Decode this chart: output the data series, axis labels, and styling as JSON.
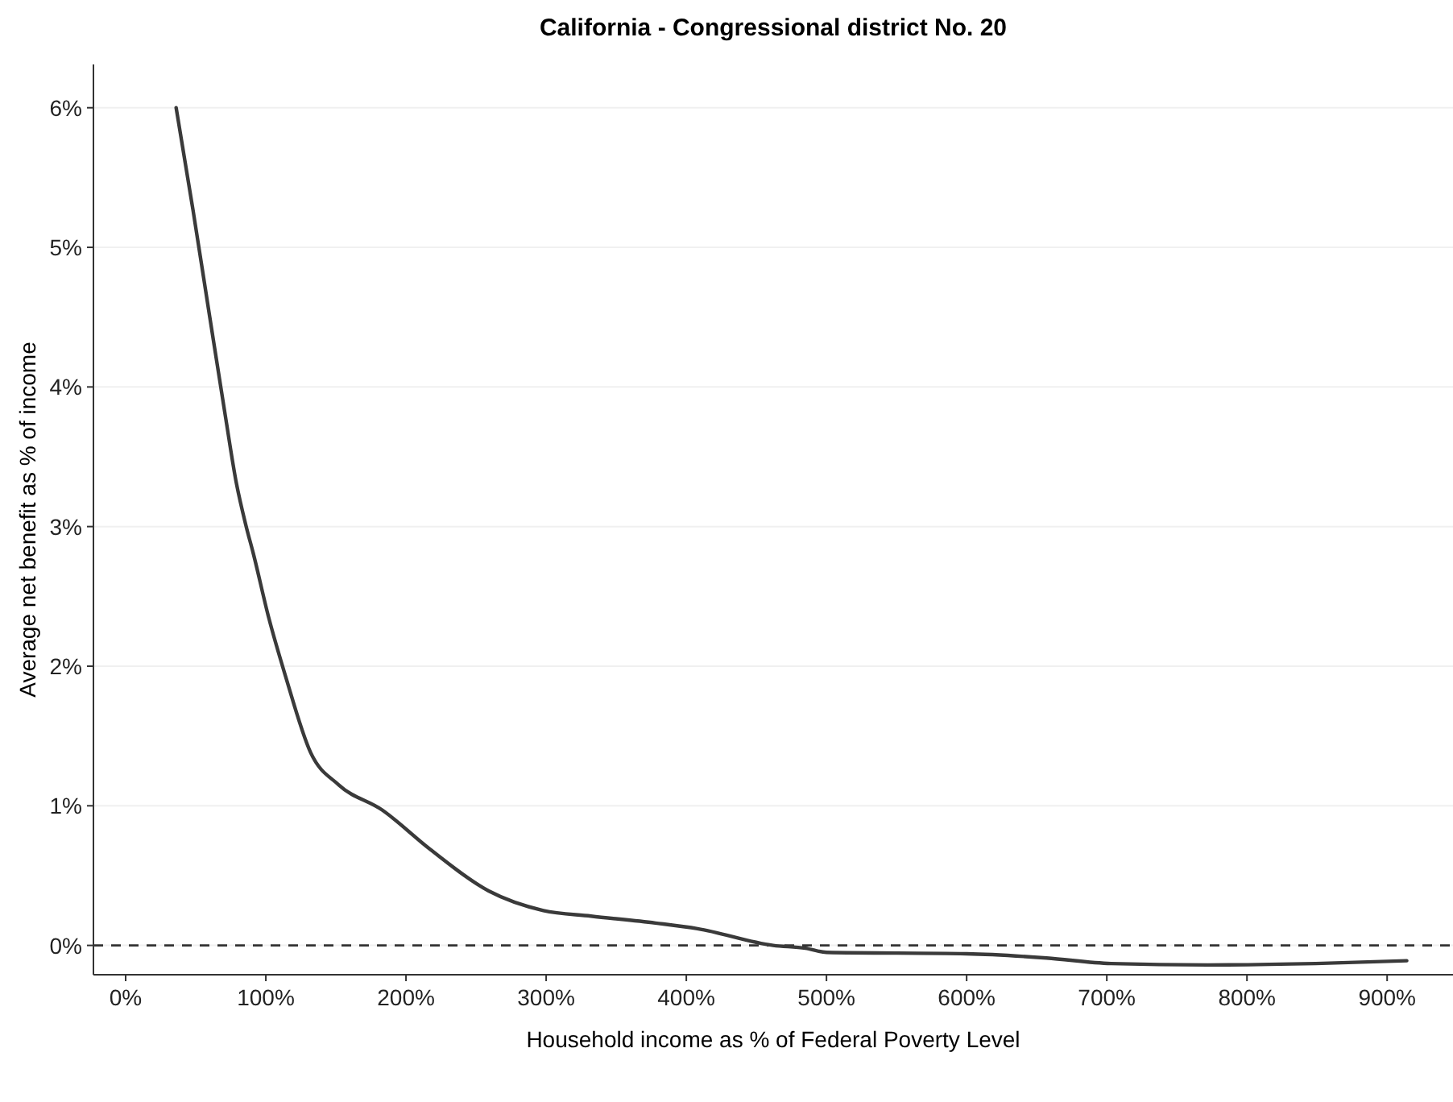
{
  "chart_data": {
    "type": "line",
    "title": "California - Congressional district No. 20",
    "xlabel": "Household income as % of Federal Poverty Level",
    "ylabel": "Average net benefit as % of income",
    "series": [
      {
        "color": "#3a3a3a",
        "x": [
          36,
          48,
          60,
          71,
          79,
          86,
          91,
          102,
          114,
          132,
          152,
          183,
          217,
          259,
          298,
          332,
          378,
          408,
          462,
          485,
          500,
          600,
          657,
          703,
          772,
          849,
          914
        ],
        "values": [
          6.0,
          5.27,
          4.5,
          3.8,
          3.31,
          3.0,
          2.81,
          2.35,
          1.93,
          1.38,
          1.15,
          0.97,
          0.69,
          0.39,
          0.25,
          0.21,
          0.16,
          0.12,
          0.0,
          -0.02,
          -0.05,
          -0.06,
          -0.09,
          -0.13,
          -0.14,
          -0.13,
          -0.11
        ]
      }
    ],
    "xlim": [
      -23,
      947
    ],
    "ylim": [
      -0.21,
      6.31
    ],
    "xticks": [
      {
        "value": 0,
        "label": "0%"
      },
      {
        "value": 100,
        "label": "100%"
      },
      {
        "value": 200,
        "label": "200%"
      },
      {
        "value": 300,
        "label": "300%"
      },
      {
        "value": 400,
        "label": "400%"
      },
      {
        "value": 500,
        "label": "500%"
      },
      {
        "value": 600,
        "label": "600%"
      },
      {
        "value": 700,
        "label": "700%"
      },
      {
        "value": 800,
        "label": "800%"
      },
      {
        "value": 900,
        "label": "900%"
      }
    ],
    "yticks": [
      {
        "value": 0,
        "label": "0%"
      },
      {
        "value": 1,
        "label": "1%"
      },
      {
        "value": 2,
        "label": "2%"
      },
      {
        "value": 3,
        "label": "3%"
      },
      {
        "value": 4,
        "label": "4%"
      },
      {
        "value": 5,
        "label": "5%"
      },
      {
        "value": 6,
        "label": "6%"
      }
    ],
    "grid": "y",
    "line_style": "solid",
    "marker": "none",
    "ref_lines": [
      {
        "axis": "y",
        "value": 0,
        "line_style": "dashed",
        "color": "#333333"
      }
    ]
  }
}
